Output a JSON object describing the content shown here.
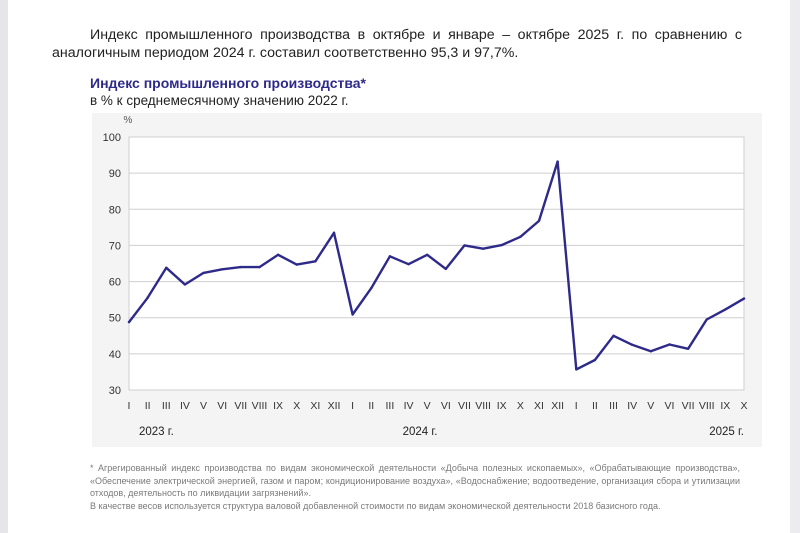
{
  "intro_text": "Индекс промышленного производства в октябре и январе – октябре 2025 г. по сравнению с аналогичным периодом 2024 г. составил соответственно 95,3 и 97,7%.",
  "chart_title": "Индекс промышленного производства*",
  "chart_subtitle": "в % к среднемесячному значению 2022 г.",
  "footnote": {
    "line1": "* Агрегированный индекс производства по видам экономической деятельности «Добыча полезных ископаемых», «Обрабатывающие производства», «Обеспечение электрической энергией, газом и паром; кондиционирование воздуха», «Водоснабжение; водоотведение, организация сбора и утилизации отходов, деятельность по ликвидации загрязнений».",
    "line2": "В качестве весов используется структура валовой добавленной стоимости по видам экономической деятельности 2018 базисного года."
  },
  "colors": {
    "line": "#2e2a8a",
    "title": "#2e2a8a",
    "grid": "#cfcfd2",
    "panel": "#f4f4f5"
  },
  "chart_data": {
    "type": "line",
    "title": "Индекс промышленного производства*",
    "subtitle": "в % к среднемесячному значению 2022 г.",
    "ylabel": "%",
    "xlabel": "",
    "ylim": [
      30,
      100
    ],
    "yticks": [
      30,
      40,
      50,
      60,
      70,
      80,
      90,
      100
    ],
    "grid": true,
    "categories": [
      "I",
      "II",
      "III",
      "IV",
      "V",
      "VI",
      "VII",
      "VIII",
      "IX",
      "X",
      "XI",
      "XII",
      "I",
      "II",
      "III",
      "IV",
      "V",
      "VI",
      "VII",
      "VIII",
      "IX",
      "X",
      "XI",
      "XII",
      "I",
      "II",
      "III",
      "IV",
      "V",
      "VI",
      "VII",
      "VIII",
      "IX",
      "X"
    ],
    "year_labels": [
      "2023 г.",
      "2024 г.",
      "2025 г."
    ],
    "series": [
      {
        "values": [
          48.8,
          55.5,
          63.8,
          59.2,
          62.4,
          63.4,
          64.0,
          64.0,
          67.4,
          64.7,
          65.6,
          73.5,
          50.9,
          58.2,
          67.0,
          64.8,
          67.4,
          63.5,
          70.0,
          69.1,
          70.1,
          72.4,
          76.8,
          93.2,
          35.7,
          38.3,
          45.0,
          42.5,
          40.7,
          42.6,
          41.4,
          49.5,
          52.3,
          55.3
        ]
      }
    ]
  }
}
